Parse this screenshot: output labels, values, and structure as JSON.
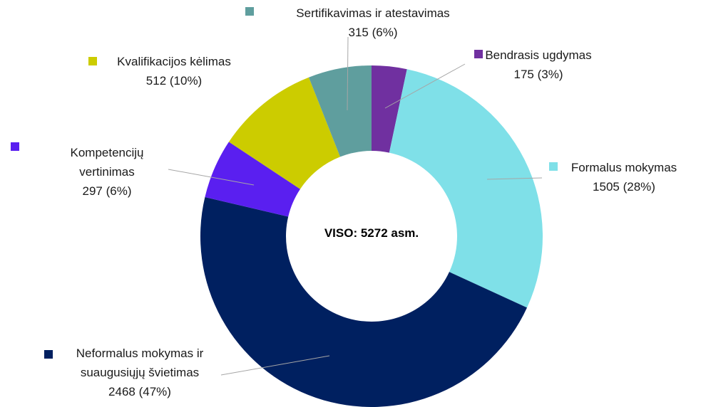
{
  "chart_data": {
    "type": "donut",
    "center_label": "VISO: 5272 asm.",
    "categories": [
      "Bendrasis ugdymas",
      "Formalus mokymas",
      "Neformalus mokymas ir suaugusiųjų švietimas",
      "Kompetencijų vertinimas",
      "Kvalifikacijos kėlimas",
      "Sertifikavimas ir atestavimas"
    ],
    "values": [
      175,
      1505,
      2468,
      297,
      512,
      315
    ],
    "value_labels": [
      "175 (3%)",
      "1505 (28%)",
      "2468 (47%)",
      "297 (6%)",
      "512 (10%)",
      "315 (6%)"
    ],
    "colors": [
      "#7030a0",
      "#7fe0e8",
      "#002060",
      "#5a1ff0",
      "#cccc00",
      "#5f9e9e"
    ]
  }
}
